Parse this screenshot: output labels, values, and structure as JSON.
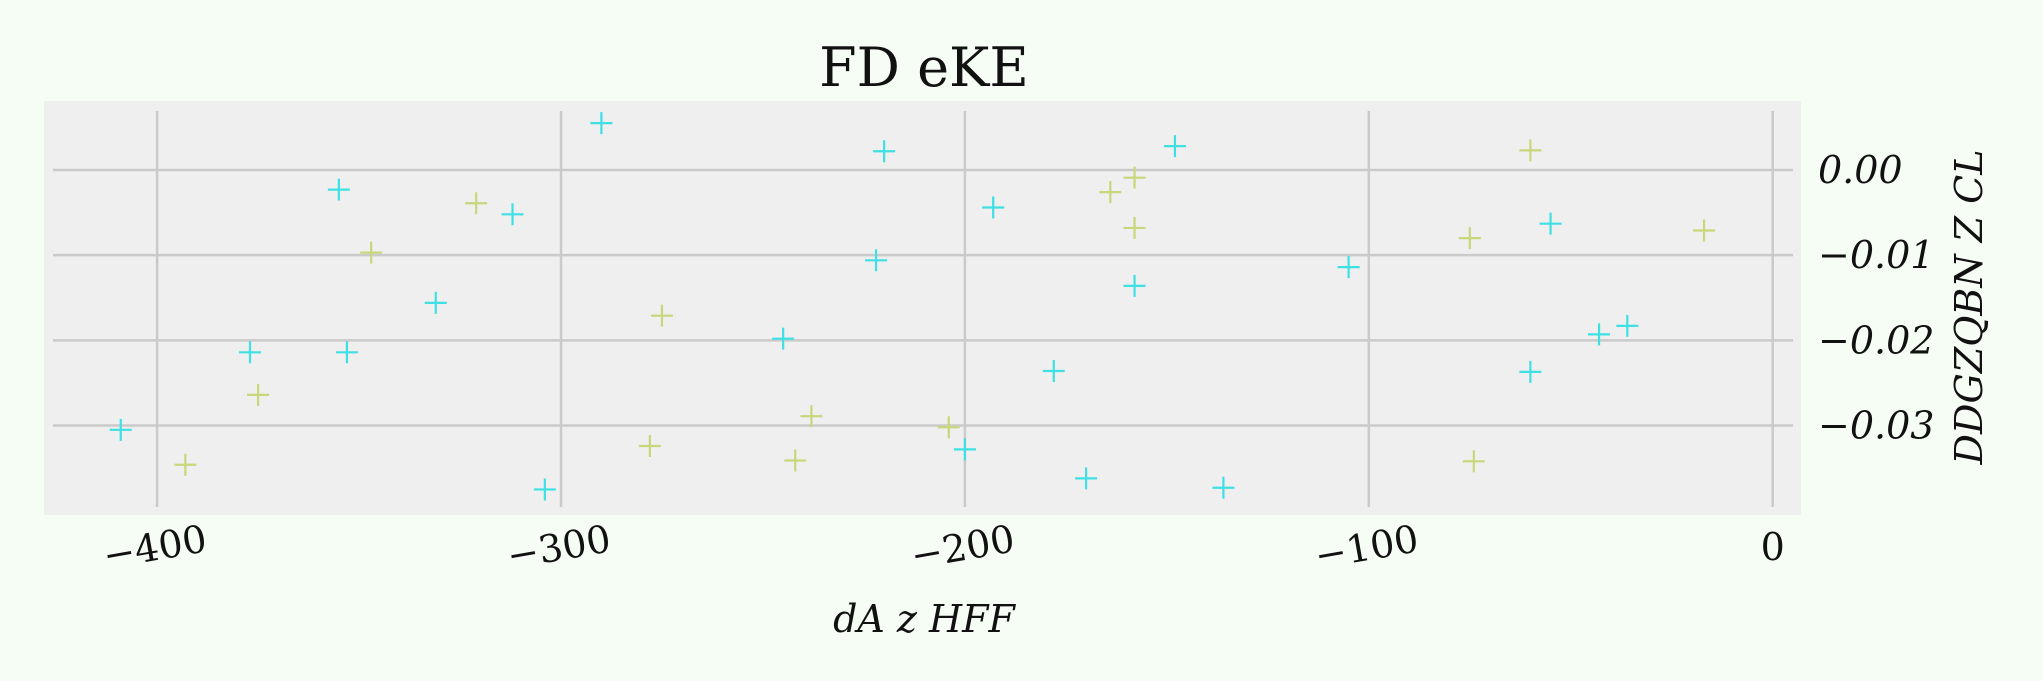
{
  "chart_data": {
    "type": "scatter",
    "title": "FD eKE",
    "xlabel": "dA z HFF",
    "ylabel": "DDGZQBN Z CL",
    "xlim": [
      -428,
      7
    ],
    "ylim": [
      -0.0405,
      0.0081
    ],
    "x_ticks": [
      -400,
      -300,
      -200,
      -100,
      0
    ],
    "x_tick_labels": [
      "−400",
      "−300",
      "−200",
      "−100",
      "0"
    ],
    "y_ticks": [
      0.0,
      -0.01,
      -0.02,
      -0.03
    ],
    "y_tick_labels": [
      "0.00",
      "−0.01",
      "−0.02",
      "−0.03"
    ],
    "y_axis_side": "right",
    "grid": true,
    "marker": "plus",
    "series": [
      {
        "color": "#3ee0e4",
        "points": [
          [
            -290,
            0.0055
          ],
          [
            -220,
            0.0022
          ],
          [
            -148,
            0.0028
          ],
          [
            -355,
            -0.0023
          ],
          [
            -193,
            -0.0044
          ],
          [
            -312,
            -0.0052
          ],
          [
            -55,
            -0.0063
          ],
          [
            -222,
            -0.0106
          ],
          [
            -105,
            -0.0114
          ],
          [
            -158,
            -0.0136
          ],
          [
            -331,
            -0.0156
          ],
          [
            -36,
            -0.0183
          ],
          [
            -43,
            -0.0193
          ],
          [
            -245,
            -0.0198
          ],
          [
            -377,
            -0.0214
          ],
          [
            -353,
            -0.0214
          ],
          [
            -178,
            -0.0236
          ],
          [
            -60,
            -0.0237
          ],
          [
            -409,
            -0.0305
          ],
          [
            -200,
            -0.0328
          ],
          [
            -170,
            -0.0362
          ],
          [
            -136,
            -0.0373
          ],
          [
            -304,
            -0.0375
          ]
        ]
      },
      {
        "color": "#c9d67a",
        "points": [
          [
            -60,
            0.0023
          ],
          [
            -158,
            -0.0009
          ],
          [
            -164,
            -0.0026
          ],
          [
            -321,
            -0.0039
          ],
          [
            -158,
            -0.0068
          ],
          [
            -17,
            -0.0071
          ],
          [
            -75,
            -0.008
          ],
          [
            -347,
            -0.0097
          ],
          [
            -275,
            -0.0171
          ],
          [
            -375,
            -0.0264
          ],
          [
            -238,
            -0.0289
          ],
          [
            -204,
            -0.0302
          ],
          [
            -278,
            -0.0324
          ],
          [
            -242,
            -0.0341
          ],
          [
            -74,
            -0.0342
          ],
          [
            -393,
            -0.0346
          ]
        ]
      }
    ]
  }
}
